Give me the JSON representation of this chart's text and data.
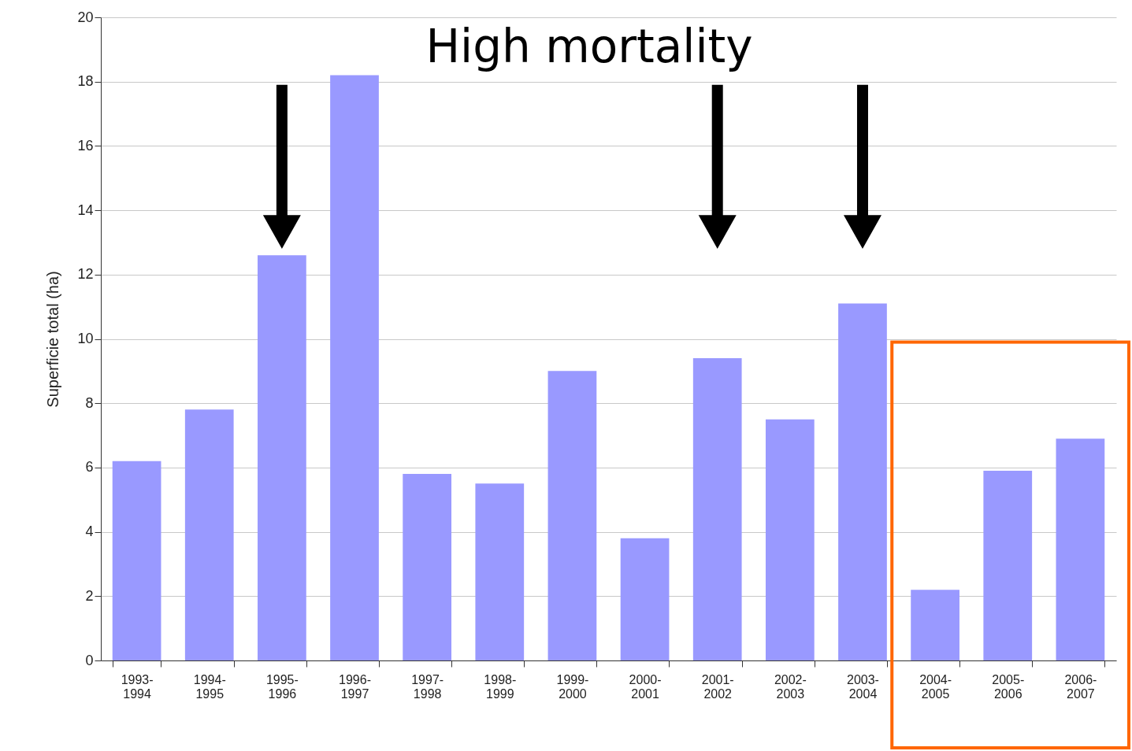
{
  "chart_data": {
    "type": "bar",
    "ylabel": "Superficie total (ha)",
    "categories": [
      "1993-1994",
      "1994-1995",
      "1995-1996",
      "1996-1997",
      "1997-1998",
      "1998-1999",
      "1999-2000",
      "2000-2001",
      "2001-2002",
      "2002-2003",
      "2003-2004",
      "2004-2005",
      "2005-2006",
      "2006-2007"
    ],
    "values": [
      6.2,
      7.8,
      12.6,
      18.2,
      5.8,
      5.5,
      9.0,
      3.8,
      9.4,
      7.5,
      11.1,
      2.2,
      5.9,
      6.9
    ],
    "color": "#9999ff",
    "ylim": [
      0,
      20
    ],
    "yticks": [
      0,
      2,
      4,
      6,
      8,
      10,
      12,
      14,
      16,
      18,
      20
    ],
    "grid": "y",
    "annotations": [
      "High mortality"
    ]
  }
}
